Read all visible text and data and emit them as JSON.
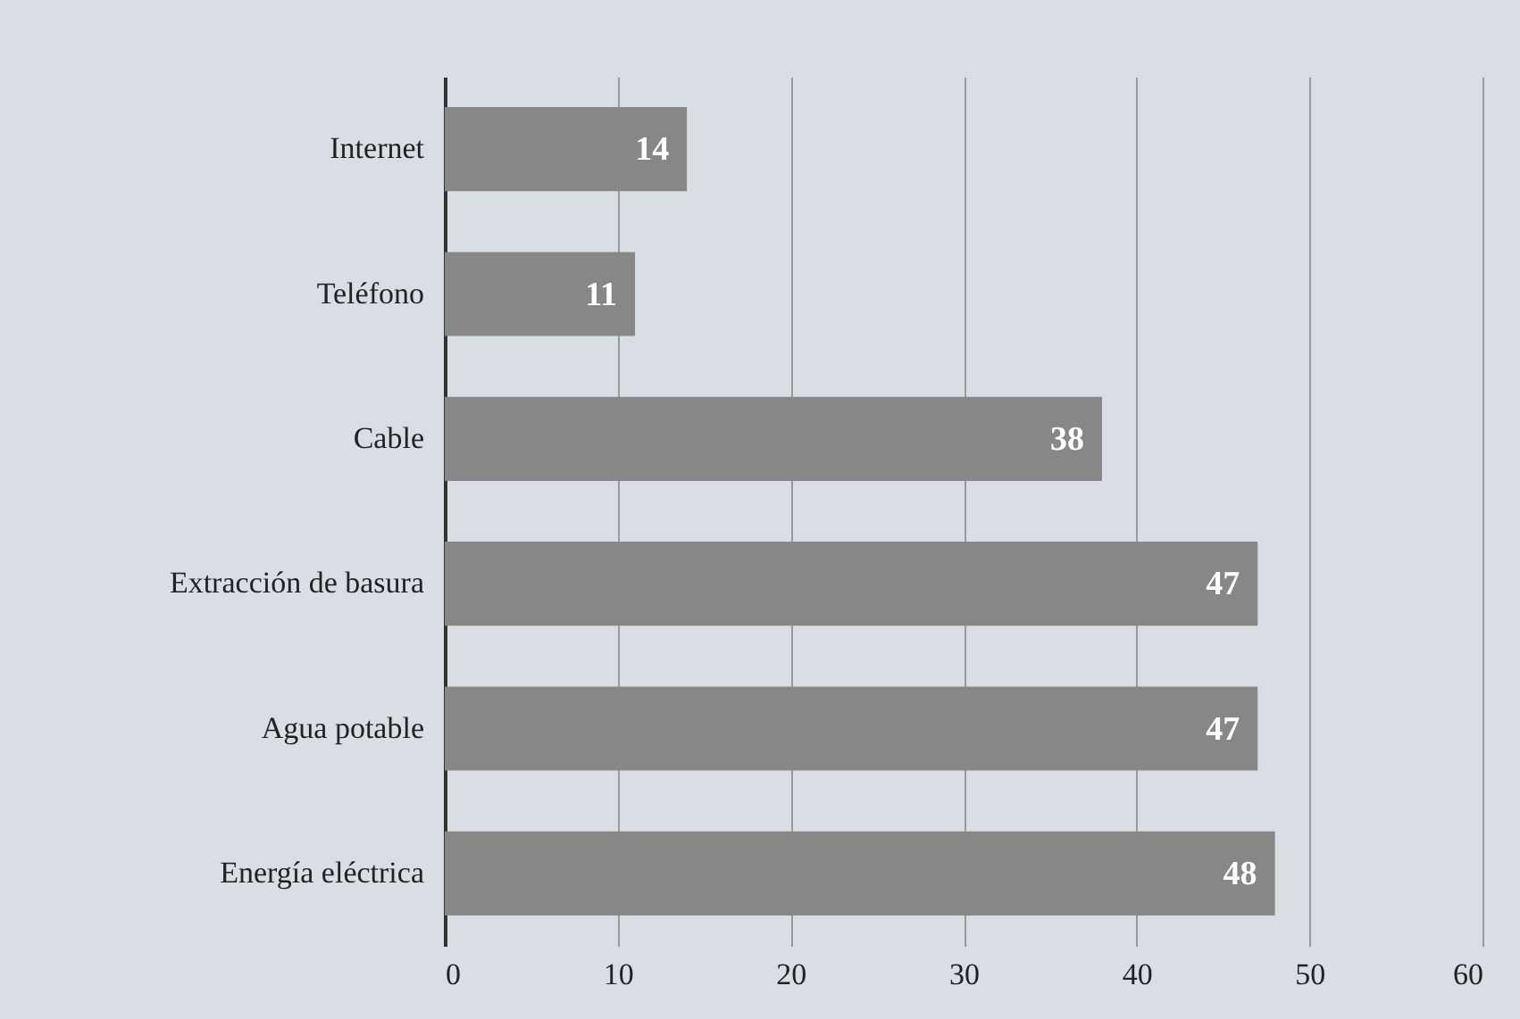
{
  "chart_data": {
    "type": "bar",
    "orientation": "horizontal",
    "categories": [
      "Internet",
      "Teléfono",
      "Cable",
      "Extracción de basura",
      "Agua potable",
      "Energía eléctrica"
    ],
    "values": [
      14,
      11,
      38,
      47,
      47,
      48
    ],
    "color": "#878787",
    "xlim": [
      0,
      60
    ],
    "xticks": [
      0,
      10,
      20,
      30,
      40,
      50,
      60
    ],
    "grid": "x",
    "data_labels": true
  }
}
